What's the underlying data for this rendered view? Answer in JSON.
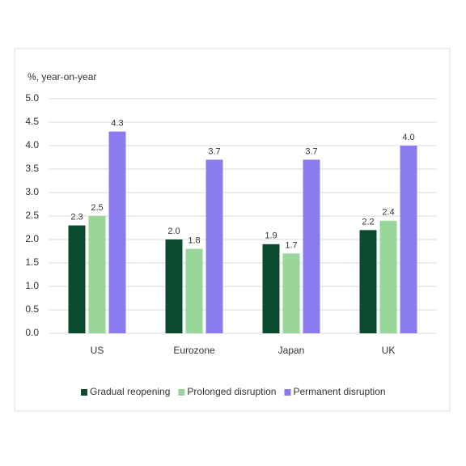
{
  "chart_data": {
    "type": "bar",
    "y_label": "%, year-on-year",
    "categories": [
      "US",
      "Eurozone",
      "Japan",
      "UK"
    ],
    "series": [
      {
        "name": "Gradual reopening",
        "color": "#0b4a2e",
        "values": [
          2.3,
          2.0,
          1.9,
          2.2
        ],
        "value_labels": [
          "2.3",
          "2.0",
          "1.9",
          "2.2"
        ]
      },
      {
        "name": "Prolonged disruption",
        "color": "#99d69a",
        "values": [
          2.5,
          1.8,
          1.7,
          2.4
        ],
        "value_labels": [
          "2.5",
          "1.8",
          "1.7",
          "2.4"
        ]
      },
      {
        "name": "Permanent disruption",
        "color": "#8a7cf0",
        "values": [
          4.3,
          3.7,
          3.7,
          4.0
        ],
        "value_labels": [
          "4.3",
          "3.7",
          "3.7",
          "4.0"
        ]
      }
    ],
    "ylim": [
      0,
      5
    ],
    "yticks": [
      {
        "value": 0,
        "label": "0.0"
      },
      0.5,
      {
        "value": 1,
        "label": "1.0"
      },
      1.5,
      {
        "value": 2,
        "label": "2.0"
      },
      2.5,
      {
        "value": 3,
        "label": "3.0"
      },
      3.5,
      {
        "value": 4,
        "label": "4.0"
      },
      4.5,
      {
        "value": 5,
        "label": "5.0"
      }
    ],
    "grid": true,
    "legend": "bottom"
  }
}
